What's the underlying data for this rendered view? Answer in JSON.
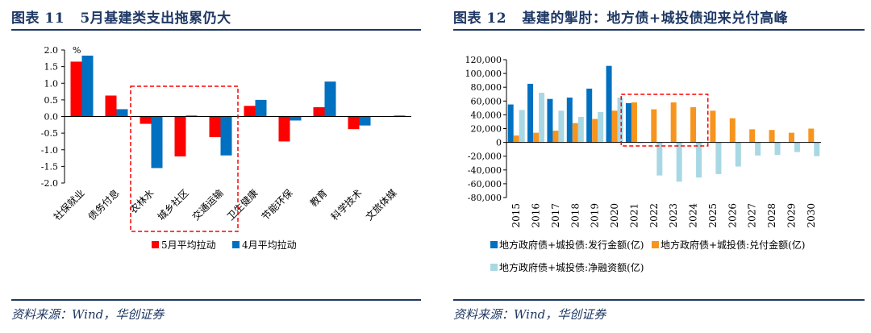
{
  "colors": {
    "navy": "#1f3864",
    "red": "#ff0000",
    "blue": "#0070c0",
    "orange": "#f7941d",
    "lightblue": "#a8d8e4",
    "dashed_box": "#ff0000"
  },
  "chart_data": [
    {
      "type": "bar",
      "fig_label": "图表 11",
      "title": "5月基建类支出拖累仍大",
      "ylabel": "%",
      "ylim": [
        -2.0,
        2.0
      ],
      "yticks": [
        "2.0",
        "1.5",
        "1.0",
        "0.5",
        "0.0",
        "-0.5",
        "-1.0",
        "-1.5",
        "-2.0"
      ],
      "categories": [
        "社保就业",
        "债务付息",
        "农林水",
        "城乡社区",
        "交通运输",
        "卫生健康",
        "节能环保",
        "教育",
        "科学技术",
        "文旅体媒"
      ],
      "series": [
        {
          "name": "5月平均拉动",
          "color": "#ff0000",
          "values": [
            1.65,
            0.63,
            -0.22,
            -1.2,
            -0.62,
            0.32,
            -0.75,
            0.28,
            -0.38,
            0.0
          ]
        },
        {
          "name": "4月平均拉动",
          "color": "#0070c0",
          "values": [
            1.83,
            0.22,
            -1.55,
            0.03,
            -1.17,
            0.5,
            -0.12,
            1.05,
            -0.27,
            0.03
          ]
        }
      ],
      "highlight": [
        "农林水",
        "城乡社区",
        "交通运输"
      ],
      "legend_position": "bottom",
      "source": "资料来源：Wind，华创证券"
    },
    {
      "type": "bar",
      "fig_label": "图表 12",
      "title": "基建的掣肘：地方债+城投债迎来兑付高峰",
      "ylabel": "",
      "ylim": [
        -80000,
        120000
      ],
      "yticks": [
        "120,000",
        "100,000",
        "80,000",
        "60,000",
        "40,000",
        "20,000",
        "0",
        "-20,000",
        "-40,000",
        "-60,000",
        "-80,000"
      ],
      "categories": [
        "2015",
        "2016",
        "2017",
        "2018",
        "2019",
        "2020",
        "2021",
        "2022",
        "2023",
        "2024",
        "2025",
        "2026",
        "2027",
        "2028",
        "2029",
        "2030"
      ],
      "series": [
        {
          "name": "地方政府债+城投债:发行金额(亿)",
          "color": "#0070c0",
          "values": [
            55000,
            85000,
            63000,
            65000,
            78000,
            111000,
            57000,
            null,
            null,
            null,
            null,
            null,
            null,
            null,
            null,
            null
          ]
        },
        {
          "name": "地方政府债+城投债:兑付金额(亿)",
          "color": "#f7941d",
          "values": [
            10000,
            14000,
            17000,
            28000,
            34000,
            46000,
            58000,
            48000,
            58000,
            51000,
            46000,
            35000,
            19000,
            18000,
            14000,
            20000
          ]
        },
        {
          "name": "地方政府债+城投债:净融资额(亿)",
          "color": "#a8d8e4",
          "values": [
            47000,
            72000,
            46000,
            37000,
            44000,
            65000,
            -1000,
            -48000,
            -57000,
            -51000,
            -46000,
            -35000,
            -19000,
            -18000,
            -14000,
            -20000
          ]
        }
      ],
      "highlight": [
        "2021",
        "2022",
        "2023",
        "2024"
      ],
      "legend_position": "bottom",
      "source": "资料来源：Wind，华创证券"
    }
  ]
}
